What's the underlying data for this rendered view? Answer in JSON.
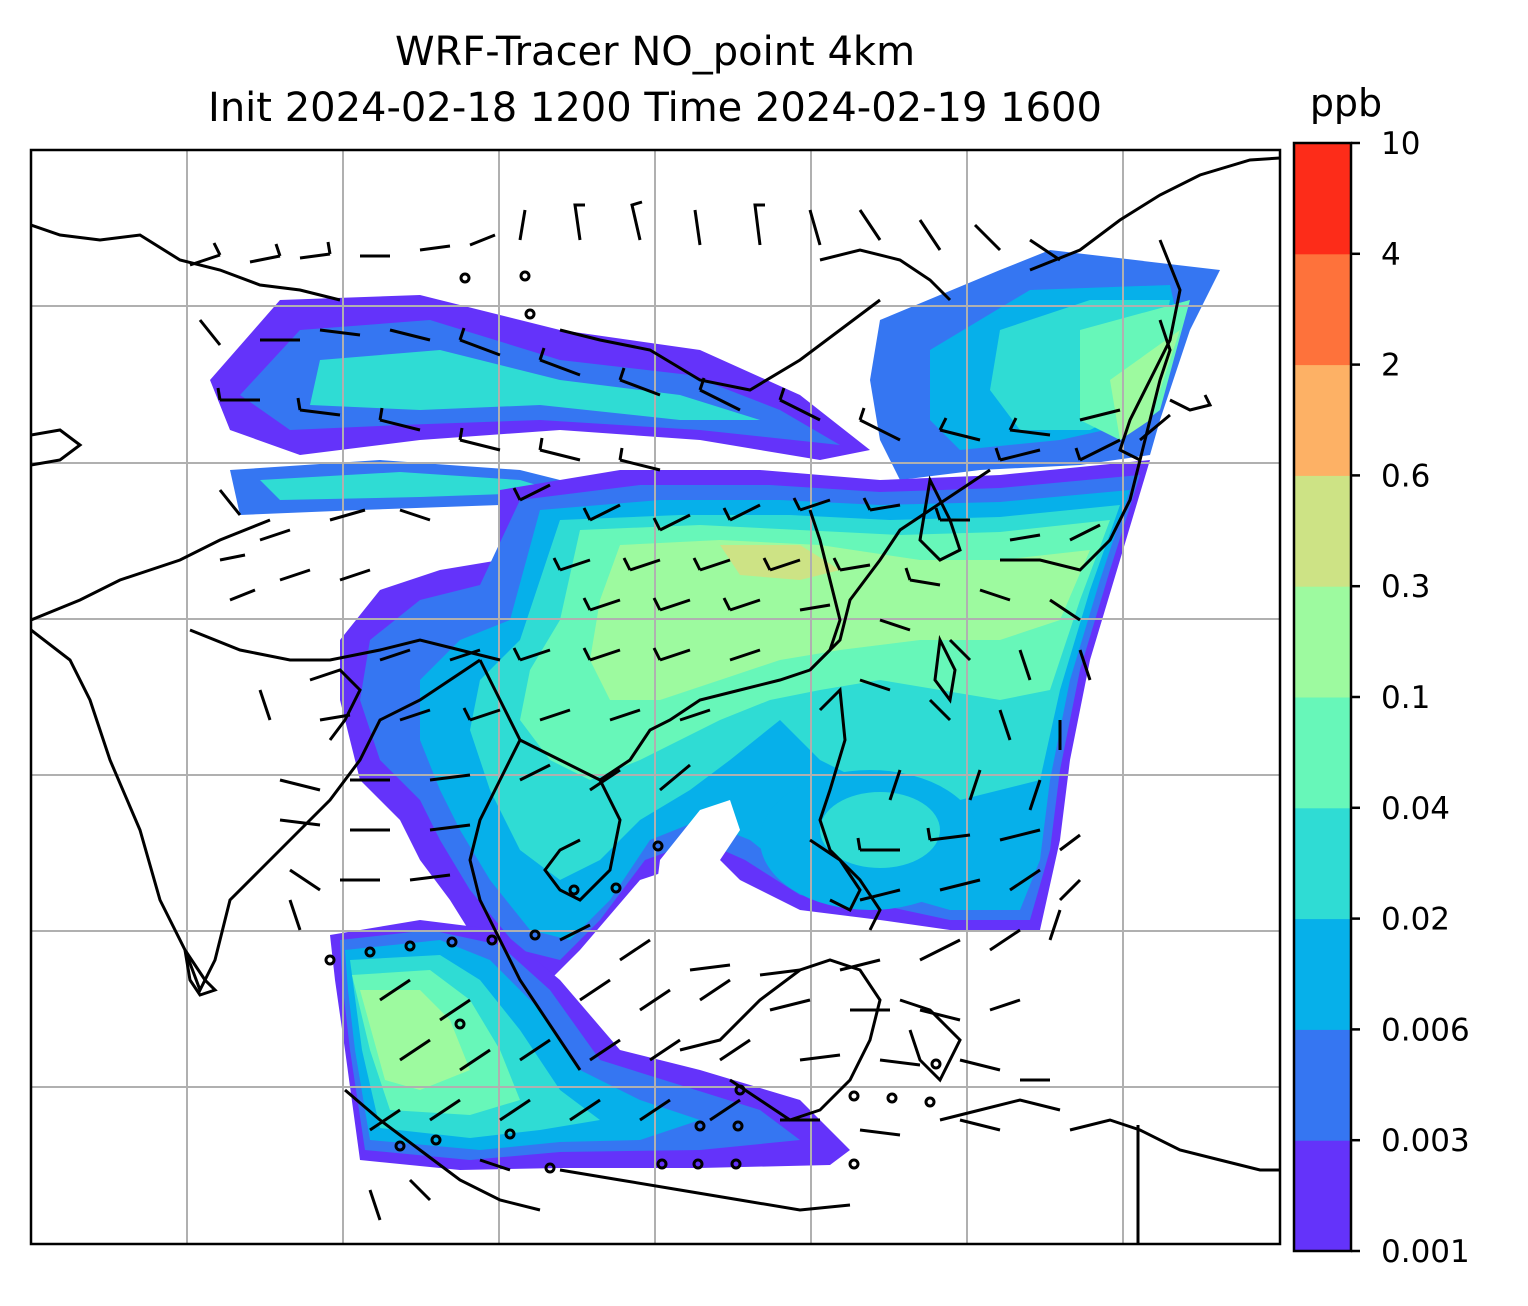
{
  "title": {
    "line1": "WRF-Tracer NO_point 4km",
    "line2": "Init 2024-02-18 1200 Time 2024-02-19 1600"
  },
  "colorbar": {
    "unit": "ppb",
    "levels": [
      "0.001",
      "0.003",
      "0.006",
      "0.02",
      "0.04",
      "0.1",
      "0.3",
      "0.6",
      "2",
      "4",
      "10"
    ],
    "colors": [
      "#6433fa",
      "#3576f2",
      "#06b0ea",
      "#2fdcd4",
      "#67f7b9",
      "#9dfa9f",
      "#cde385",
      "#fdb165",
      "#fe723b",
      "#fd2c19"
    ]
  },
  "map": {
    "grid": "on",
    "features": [
      "coastlines",
      "country-borders",
      "tracer-plume",
      "wind-barbs",
      "calm-circles"
    ]
  }
}
